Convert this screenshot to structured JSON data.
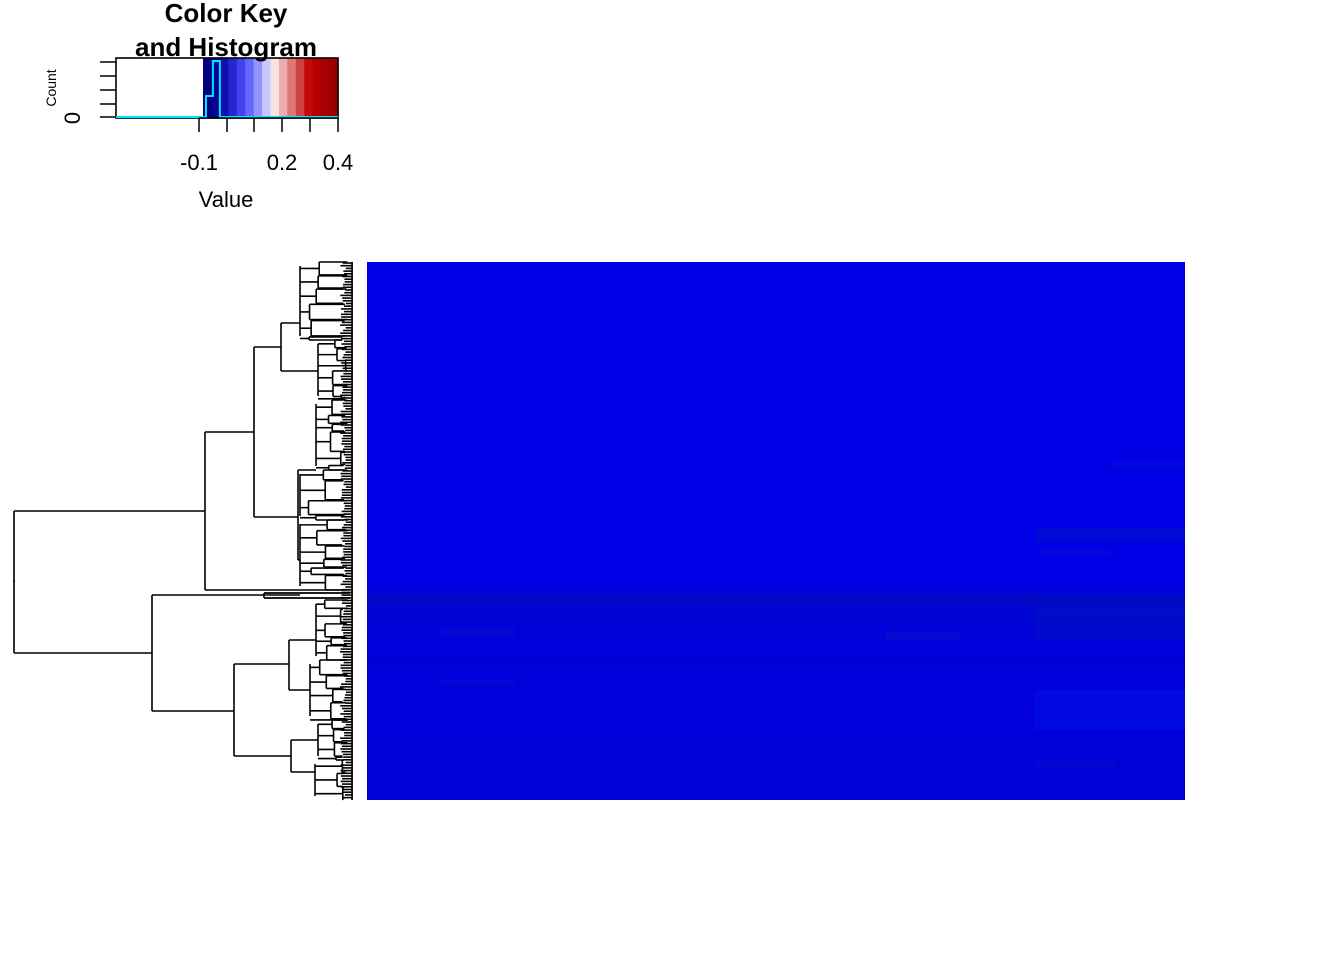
{
  "chart_data": {
    "type": "heatmap",
    "color_key": {
      "title_line1": "Color Key",
      "title_line2": "and Histogram",
      "xlabel": "Value",
      "ylabel": "Count",
      "y_tick_label": "0",
      "x_tick_labels": [
        "-0.1",
        "0.2",
        "0.4"
      ],
      "x_tick_values": [
        -0.1,
        0.2,
        0.4
      ],
      "range": [
        -0.2,
        0.4
      ],
      "color_low": "#00007f",
      "color_mid": "#ffffff",
      "color_high": "#9b0000",
      "histogram_color": "#00e5ff",
      "histogram": {
        "bin_edges": [
          -0.1,
          -0.075,
          -0.05,
          -0.025
        ],
        "counts": [
          0,
          3,
          8
        ]
      }
    },
    "heatmap": {
      "rows": 200,
      "columns": 11,
      "base_color": "#0000e6",
      "row_dendrogram": true,
      "column_dendrogram": false
    }
  }
}
